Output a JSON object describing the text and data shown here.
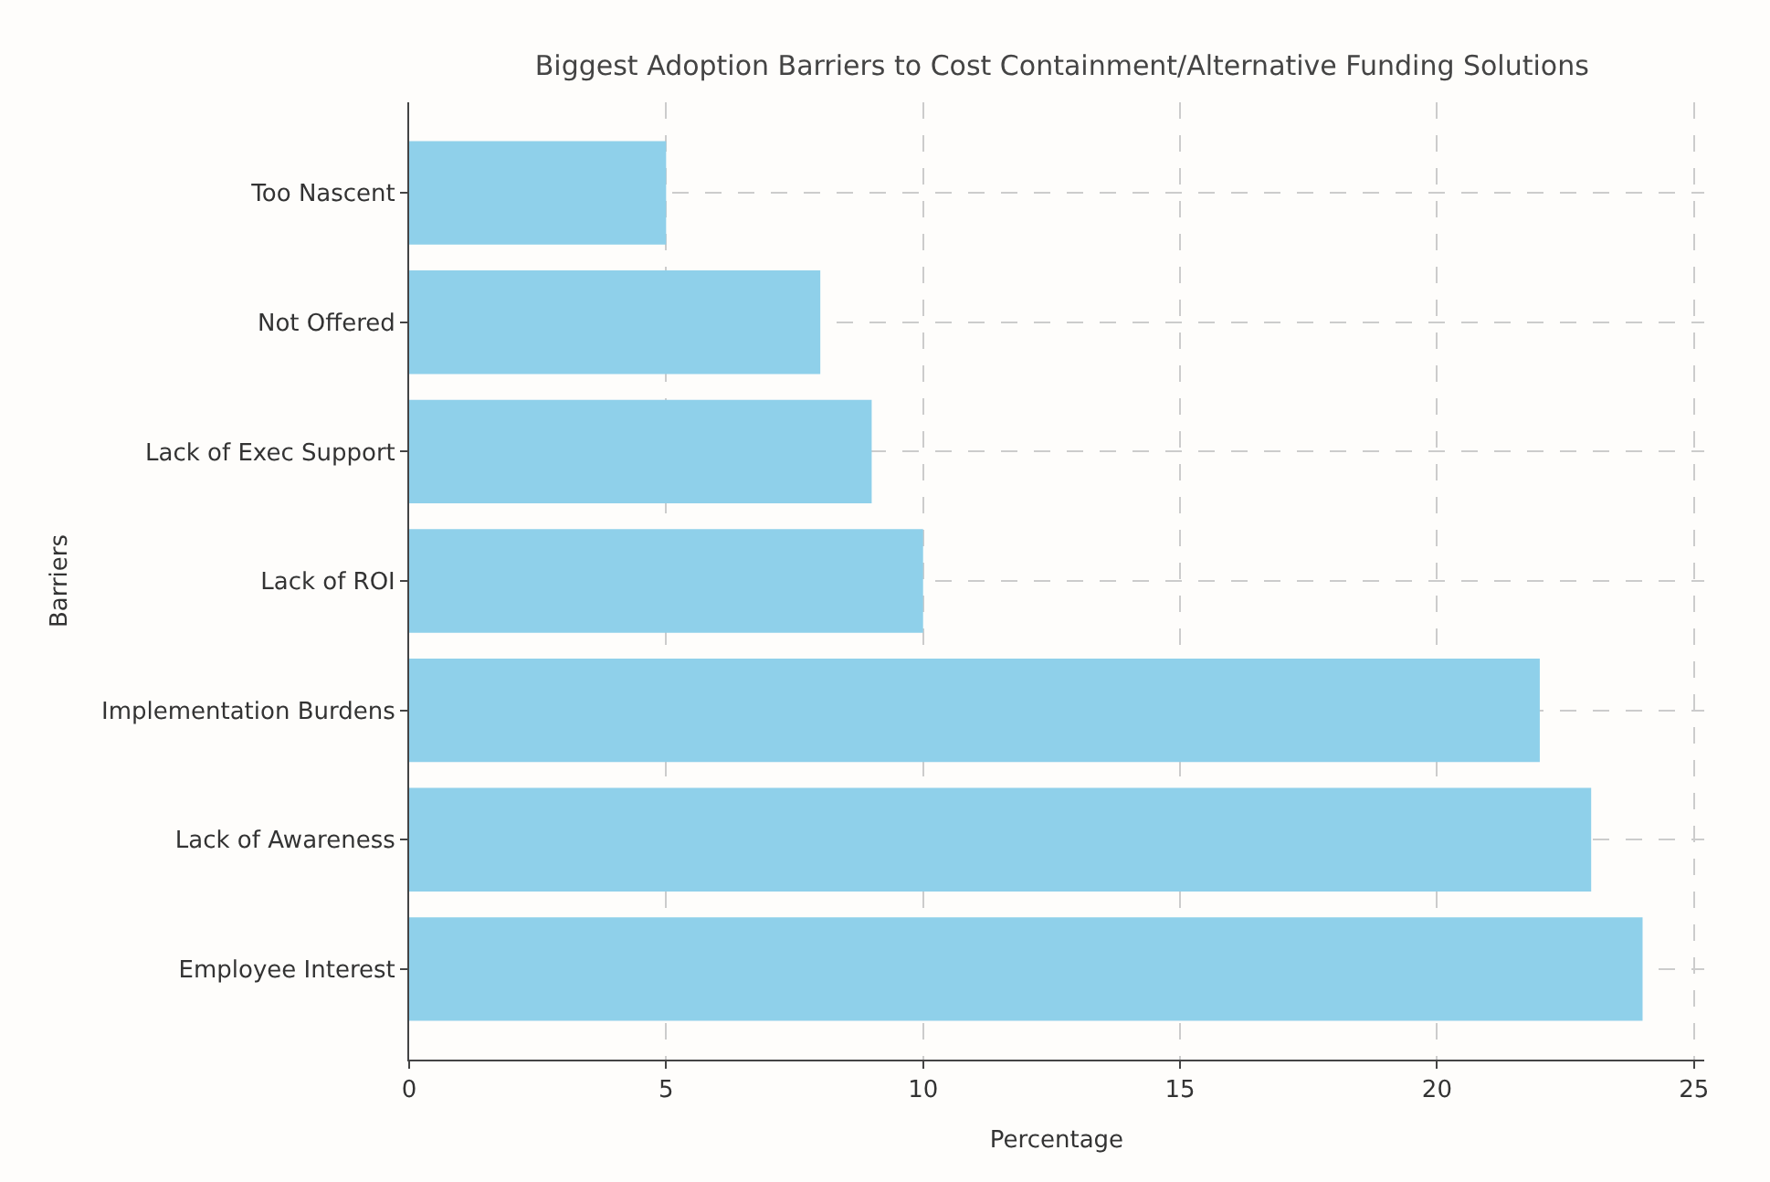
{
  "chart_data": {
    "type": "bar",
    "orientation": "horizontal",
    "title": "Biggest Adoption Barriers to Cost Containment/Alternative Funding Solutions",
    "xlabel": "Percentage",
    "ylabel": "Barriers",
    "categories": [
      "Too Nascent",
      "Not Offered",
      "Lack of Exec Support",
      "Lack of ROI",
      "Implementation Burdens",
      "Lack of Awareness",
      "Employee Interest"
    ],
    "values": [
      5,
      8,
      9,
      10,
      22,
      23,
      24
    ],
    "color": "#8fd0ea",
    "xlim": [
      0,
      25.2
    ],
    "xticks": [
      0,
      5,
      10,
      15,
      20,
      25
    ],
    "grid": true
  }
}
